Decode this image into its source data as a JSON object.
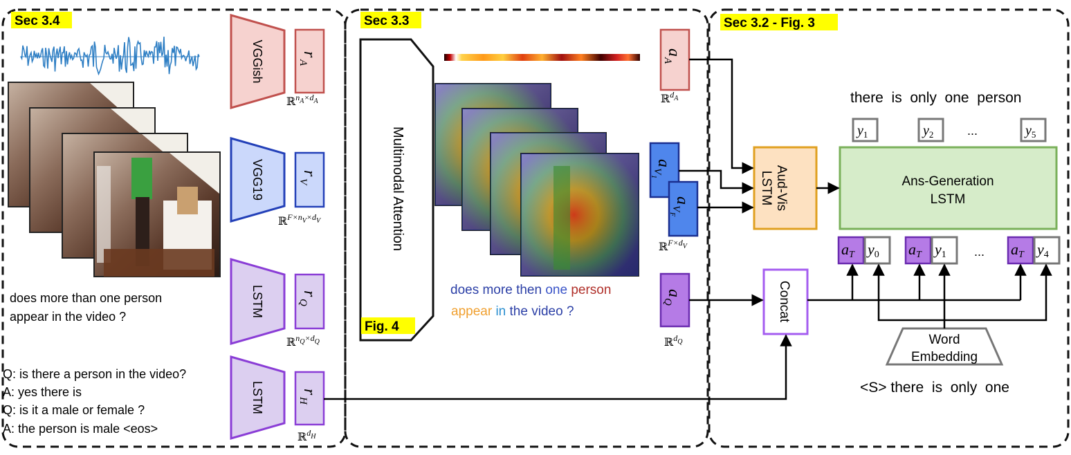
{
  "sections": {
    "s34": "Sec 3.4",
    "s33": "Sec 3.3",
    "s32": "Sec 3.2 - Fig. 3",
    "fig4": "Fig. 4"
  },
  "encoders": {
    "vggish": "VGGish",
    "vgg19": "VGG19",
    "lstm_q": "LSTM",
    "lstm_h": "LSTM"
  },
  "features": {
    "rA": "r",
    "rA_sub": "A",
    "rV": "r",
    "rV_sub": "V",
    "rQ": "r",
    "rQ_sub": "Q",
    "rH": "r",
    "rH_sub": "H"
  },
  "dims": {
    "rA": {
      "base": "ℝ",
      "sup1": "n",
      "sub1": "A",
      "mid": "×d",
      "sub2": "A"
    },
    "rV": {
      "base": "ℝ",
      "sup1": "F×n",
      "sub1": "V",
      "mid": "×d",
      "sub2": "V"
    },
    "rQ": {
      "base": "ℝ",
      "sup1": "n",
      "sub1": "Q",
      "mid": "×d",
      "sub2": "Q"
    },
    "rH": {
      "base": "ℝ",
      "sup1": "d",
      "sub1": "H"
    },
    "aA": {
      "base": "ℝ",
      "sup1": "d",
      "sub1": "A"
    },
    "aV": {
      "base": "ℝ",
      "sup1": "F×d",
      "sub1": "V"
    },
    "aQ": {
      "base": "ℝ",
      "sup1": "d",
      "sub1": "Q"
    }
  },
  "attended": {
    "aA": "a",
    "aA_sub": "A",
    "aV1": "a",
    "aV1_sub": "V",
    "aV1_subsub": "1",
    "aVF": "a",
    "aVF_sub": "V",
    "aVF_subsub": "F",
    "aQ": "a",
    "aQ_sub": "Q"
  },
  "question_text": [
    "does more than one person",
    "appear in the video ?"
  ],
  "dialog_history": [
    "Q: is there a person in the video?",
    "A: yes there is",
    "Q: is it a male or female ?",
    "A: the person is male <eos>"
  ],
  "attention_module": "Multimodal Attention",
  "attention_question": [
    {
      "word": "does",
      "color": "#2b3fa6"
    },
    {
      "word": "more",
      "color": "#2b3fa6"
    },
    {
      "word": "then",
      "color": "#2b3fa6"
    },
    {
      "word": "one",
      "color": "#3a54c8"
    },
    {
      "word": "person",
      "color": "#b0302a"
    },
    {
      "word": "appear",
      "color": "#f0a030"
    },
    {
      "word": "in",
      "color": "#2a8fd0"
    },
    {
      "word": "the",
      "color": "#2b3fa6"
    },
    {
      "word": "video",
      "color": "#2b3fa6"
    },
    {
      "word": "?",
      "color": "#2b3fa6"
    }
  ],
  "av_lstm": [
    "Aud-Vis",
    "LSTM"
  ],
  "ans_lstm": [
    "Ans-Generation",
    "LSTM"
  ],
  "concat": "Concat",
  "word_embedding": [
    "Word",
    "Embedding"
  ],
  "answer_output": "there  is  only  one  person",
  "decoder_input": "<S> there  is  only  one",
  "outputs": [
    {
      "t": "y",
      "s": "1"
    },
    {
      "t": "y",
      "s": "2"
    },
    {
      "t": "...",
      "s": ""
    },
    {
      "t": "y",
      "s": "5"
    }
  ],
  "inputs": [
    {
      "a": "a",
      "as": "T",
      "y": "y",
      "ys": "0"
    },
    {
      "a": "a",
      "as": "T",
      "y": "y",
      "ys": "1"
    },
    {
      "a": "a",
      "as": "T",
      "y": "y",
      "ys": "4"
    }
  ],
  "ellipsis": "...",
  "colors": {
    "audio": "#c0504d",
    "audio_fill": "#f6d2cf",
    "visual": "#2340b8",
    "visual_fill": "#cbd8fb",
    "visual_attn_fill": "#4f86ec",
    "text": "#8a3dd6",
    "text_fill": "#dccff0",
    "text_attn_fill": "#b57be6",
    "av_lstm": "#e0a020",
    "av_lstm_fill": "#fde1c1",
    "ans_lstm": "#7ab05a",
    "ans_lstm_fill": "#d6ecc9",
    "highlight": "#ffff00",
    "token_box": "#777777"
  }
}
